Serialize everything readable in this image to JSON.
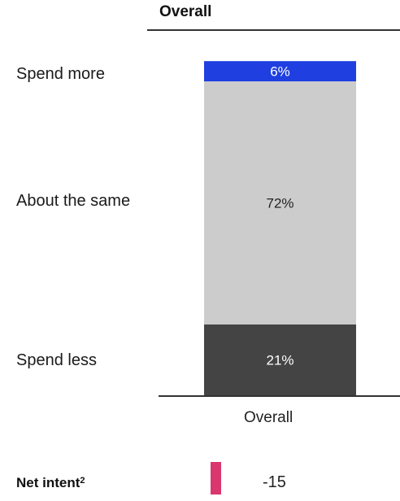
{
  "header": {
    "title": "Overall"
  },
  "rows": {
    "spend_more": "Spend more",
    "about_same": "About the same",
    "spend_less": "Spend less"
  },
  "chart_data": {
    "type": "bar",
    "stacked": true,
    "categories": [
      "Overall"
    ],
    "series": [
      {
        "name": "Spend less",
        "values": [
          21
        ],
        "label": "21%",
        "color": "#444444",
        "label_color": "#ffffff"
      },
      {
        "name": "About the same",
        "values": [
          72
        ],
        "label": "72%",
        "color": "#cccccc",
        "label_color": "#222222"
      },
      {
        "name": "Spend more",
        "values": [
          6
        ],
        "label": "6%",
        "color": "#1f3fe0",
        "label_color": "#ffffff"
      }
    ],
    "ylim": [
      0,
      100
    ],
    "grid": false,
    "legend": "none"
  },
  "net_intent": {
    "label": "Net intent",
    "superscript": "2",
    "value": -15,
    "value_label": "-15",
    "color": "#d9376e"
  }
}
